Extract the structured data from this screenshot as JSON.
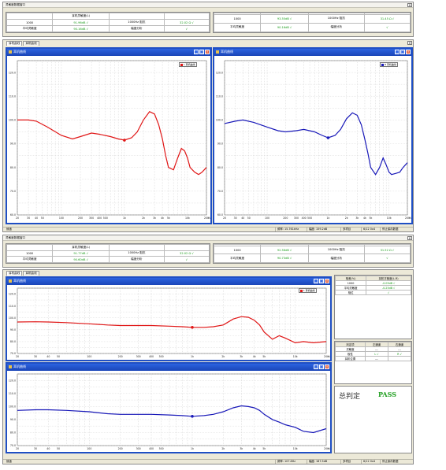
{
  "colors": {
    "red_curve": "#e01515",
    "blue_curve": "#1818b8",
    "pass": "#1a9c1a",
    "titlebar": "#1f4fc4"
  },
  "sensitivity_window": {
    "title": "灵敏度数据窗口",
    "left_table": [
      [
        "1000",
        "91.96dB √",
        "1000Hz 阻抗",
        "32.02 Ω √"
      ],
      [
        "平均灵敏度",
        "90.16dB √",
        "幅度分析",
        "√"
      ]
    ],
    "right_table": [
      [
        "1000",
        "93.55dB √",
        "1000Hz 阻抗",
        "31.45 Ω √"
      ],
      [
        "平均灵敏度",
        "90.16dB √",
        "幅度分析",
        "√"
      ]
    ],
    "left_header": "耳机灵敏度(L)",
    "right_header": ""
  },
  "sensitivity_window_2": {
    "title": "灵敏度数据窗口",
    "left_table": [
      [
        "1000",
        "91.77dB √",
        "1000Hz 阻抗",
        "32.02 Ω √"
      ],
      [
        "平均灵敏度",
        "90.60dB √",
        "幅度分析",
        "√"
      ]
    ],
    "right_table": [
      [
        "1000",
        "92.56dB √",
        "1000Hz 阻抗",
        "31.52 Ω √"
      ],
      [
        "平均灵敏度",
        "90.73dB √",
        "幅度分析",
        "√"
      ]
    ],
    "left_header": "耳机灵敏度(L)",
    "right_header": ""
  },
  "tabs": [
    "耳机曲线",
    "耳机曲线"
  ],
  "curve_title": "耳机曲线",
  "legend_left": "L 耳机曲线",
  "legend_right": "R 耳机曲线",
  "freq_ticks": [
    "20",
    "30",
    "40",
    "50",
    "100",
    "200",
    "300",
    "400",
    "500",
    "1k",
    "2k",
    "3k",
    "4k",
    "5k",
    "10k",
    "20k"
  ],
  "freq_unit": "Hz",
  "y_ticks_top": [
    "120.0",
    "110.0",
    "100.0",
    "90.0",
    "80.0",
    "70.0",
    "60.0"
  ],
  "y_ticks_bottom": [
    "120.0",
    "110.0",
    "100.0",
    "90.0",
    "80.0",
    "70.0"
  ],
  "status_top": {
    "label": "就绪",
    "freq": "频率: 15.761kHz",
    "level": "幅度: 159.2dB",
    "mode": "多项目",
    "date": "6/12 0x4",
    "save": "停止保存数据"
  },
  "status_bottom": {
    "label": "就绪",
    "freq": "频率: 107.8Hz",
    "level": "幅度: 187.5dB",
    "mode": "多项目",
    "date": "6/12 0x4",
    "save": "停止保存数据"
  },
  "side_panel": {
    "header": [
      "相差(%)",
      "耳机平衡度(L-R)"
    ],
    "rows": [
      [
        "1000",
        "-0.09dB √"
      ],
      [
        "平均灵敏度",
        "-0.25dB √"
      ],
      [
        "相位",
        "√"
      ]
    ]
  },
  "judge_panel": {
    "header": [
      "判定项",
      "左通道",
      "右通道"
    ],
    "rows": [
      [
        "灵敏度",
        "---",
        "---"
      ],
      [
        "极性",
        "L √",
        "R √"
      ],
      [
        "耳机位置",
        "---",
        ""
      ]
    ]
  },
  "verdict": {
    "label": "总判定",
    "value": "PASS"
  },
  "chart_data": [
    {
      "type": "line",
      "title": "耳机曲线",
      "xlabel": "Hz",
      "x_scale": "log",
      "xlim": [
        20,
        20000
      ],
      "ylim": [
        60,
        125
      ],
      "series": [
        {
          "name": "L 耳机曲线",
          "color": "#e01515",
          "x": [
            20,
            30,
            40,
            60,
            100,
            150,
            200,
            300,
            400,
            600,
            800,
            1000,
            1300,
            1600,
            2000,
            2500,
            3000,
            3500,
            4000,
            4500,
            5000,
            6000,
            7000,
            8000,
            9000,
            10000,
            11000,
            13000,
            15000,
            17000,
            20000
          ],
          "y": [
            100,
            100,
            99.5,
            97,
            93.5,
            92,
            93,
            94.5,
            94,
            93,
            92,
            91.5,
            92.5,
            95,
            100,
            103.5,
            102.5,
            98,
            92,
            85,
            80,
            79,
            84,
            88,
            87,
            84,
            80,
            78,
            77,
            78,
            80
          ]
        },
        {
          "name": "R 耳机曲线",
          "color": "#1818b8",
          "x": [
            20,
            30,
            40,
            60,
            100,
            150,
            200,
            300,
            400,
            600,
            800,
            1000,
            1300,
            1600,
            2000,
            2500,
            3000,
            3500,
            4000,
            4500,
            5000,
            6000,
            7000,
            8000,
            9000,
            10000,
            11000,
            13000,
            15000,
            17000,
            20000
          ],
          "y": [
            98.5,
            99.5,
            100,
            99,
            97,
            95.5,
            95,
            95.5,
            96,
            95,
            93.5,
            92.5,
            93.5,
            96,
            100.5,
            103,
            102,
            98,
            92,
            86,
            80,
            77,
            80,
            84,
            81,
            78,
            77,
            77.5,
            78,
            80,
            82
          ]
        }
      ]
    },
    {
      "type": "line",
      "title": "耳机曲线",
      "xlabel": "Hz",
      "x_scale": "log",
      "xlim": [
        20,
        20000
      ],
      "ylim": [
        70,
        125
      ],
      "series": [
        {
          "name": "L 耳机曲线",
          "color": "#e01515",
          "x": [
            20,
            30,
            40,
            60,
            100,
            150,
            200,
            300,
            400,
            600,
            800,
            1000,
            1300,
            1600,
            2000,
            2500,
            3000,
            3500,
            4000,
            4500,
            5000,
            6000,
            7000,
            8000,
            10000,
            12000,
            15000,
            20000
          ],
          "y": [
            96.5,
            96.7,
            96.5,
            96,
            95,
            94,
            93.5,
            93.5,
            93.5,
            93,
            92.5,
            92,
            92,
            92.5,
            94,
            99,
            101,
            100.5,
            98,
            94,
            88,
            82,
            85,
            83,
            79,
            80,
            79,
            80
          ]
        }
      ]
    },
    {
      "type": "line",
      "title": "耳机曲线",
      "xlabel": "Hz",
      "x_scale": "log",
      "xlim": [
        20,
        20000
      ],
      "ylim": [
        70,
        125
      ],
      "series": [
        {
          "name": "R 耳机曲线",
          "color": "#1818b8",
          "x": [
            20,
            30,
            40,
            60,
            100,
            150,
            200,
            300,
            400,
            600,
            800,
            1000,
            1300,
            1600,
            2000,
            2500,
            3000,
            3500,
            4000,
            4500,
            5000,
            6000,
            7000,
            8000,
            10000,
            12000,
            15000,
            20000
          ],
          "y": [
            97,
            97.5,
            97.5,
            97,
            96,
            94.5,
            94,
            94,
            94,
            93.5,
            93,
            92.5,
            93,
            94,
            96,
            99,
            100.5,
            100,
            99,
            97,
            94,
            90,
            88,
            86,
            84,
            81,
            80,
            83
          ]
        }
      ]
    }
  ]
}
